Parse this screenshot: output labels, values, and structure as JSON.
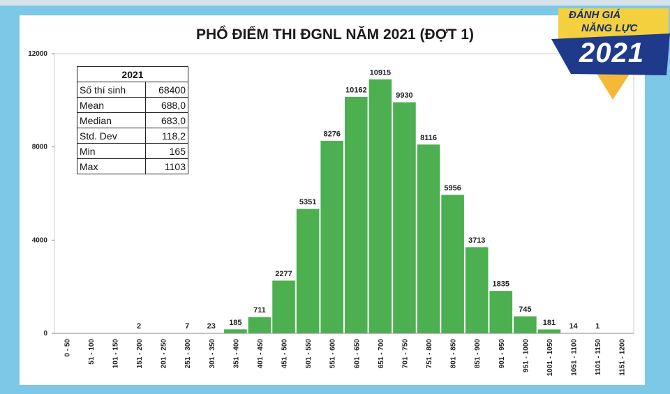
{
  "badge": {
    "line1": "ĐÁNH GIÁ",
    "line2": "NĂNG LỰC",
    "year": "2021"
  },
  "stats_table": {
    "header": "2021",
    "rows": [
      {
        "label": "Số thí sinh",
        "value": "68400"
      },
      {
        "label": "Mean",
        "value": "688,0"
      },
      {
        "label": "Median",
        "value": "683,0"
      },
      {
        "label": "Std. Dev",
        "value": "118,2"
      },
      {
        "label": "Min",
        "value": "165"
      },
      {
        "label": "Max",
        "value": "1103"
      }
    ]
  },
  "colors": {
    "bar": "#4caf50",
    "bar_stroke": "#ffffff",
    "background": "#7cc8e6"
  },
  "chart_data": {
    "type": "bar",
    "title": "PHỔ ĐIỂM THI ĐGNL NĂM 2021 (ĐỢT 1)",
    "xlabel": "",
    "ylabel": "",
    "ylim": [
      0,
      12000
    ],
    "yticks": [
      "0",
      "4000",
      "8000",
      "12000"
    ],
    "grid": false,
    "legend": "none",
    "categories": [
      "0 - 50",
      "51 - 100",
      "101 - 150",
      "151 - 200",
      "201 - 250",
      "251 - 300",
      "301 - 350",
      "351 - 400",
      "401 - 450",
      "451 - 500",
      "501 - 550",
      "551 - 600",
      "601 - 650",
      "651 - 700",
      "701 - 750",
      "751 - 800",
      "801 - 850",
      "851 - 900",
      "901 - 950",
      "951 - 1000",
      "1001 - 1050",
      "1051 - 1100",
      "1101 - 1150",
      "1151 - 1200"
    ],
    "values": [
      0,
      0,
      0,
      2,
      0,
      7,
      23,
      185,
      711,
      2277,
      5351,
      8276,
      10162,
      10915,
      9930,
      8116,
      5956,
      3713,
      1835,
      745,
      181,
      14,
      1,
      0
    ],
    "data_labels": [
      "",
      "",
      "",
      "2",
      "",
      "7",
      "23",
      "185",
      "711",
      "2277",
      "5351",
      "8276",
      "10162",
      "10915",
      "9930",
      "8116",
      "5956",
      "3713",
      "1835",
      "745",
      "181",
      "14",
      "1",
      ""
    ]
  }
}
